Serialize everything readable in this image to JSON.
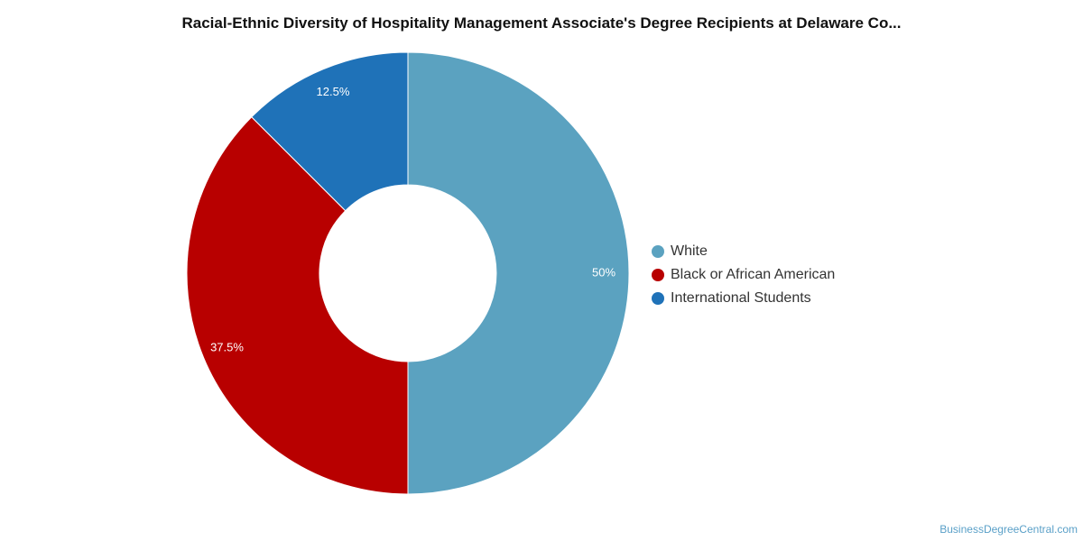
{
  "chart_data": {
    "type": "pie",
    "title": "Racial-Ethnic Diversity of Hospitality Management Associate's Degree Recipients at Delaware Co...",
    "legend_position": "right",
    "slices": [
      {
        "label": "White",
        "value": 50,
        "display": "50%",
        "color": "#5ba2c0"
      },
      {
        "label": "Black or African American",
        "value": 37.5,
        "display": "37.5%",
        "color": "#b80000"
      },
      {
        "label": "International Students",
        "value": 12.5,
        "display": "12.5%",
        "color": "#1f72b8"
      }
    ]
  },
  "watermark": "BusinessDegreeCentral.com"
}
